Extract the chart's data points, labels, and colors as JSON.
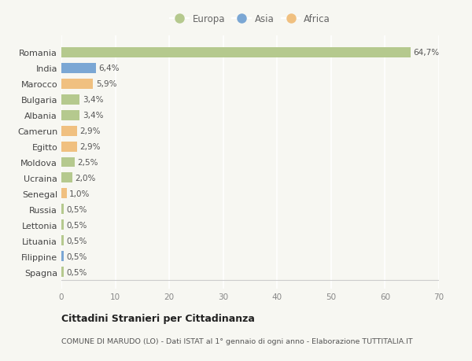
{
  "categories": [
    "Spagna",
    "Filippine",
    "Lituania",
    "Lettonia",
    "Russia",
    "Senegal",
    "Ucraina",
    "Moldova",
    "Egitto",
    "Camerun",
    "Albania",
    "Bulgaria",
    "Marocco",
    "India",
    "Romania"
  ],
  "values": [
    0.5,
    0.5,
    0.5,
    0.5,
    0.5,
    1.0,
    2.0,
    2.5,
    2.9,
    2.9,
    3.4,
    3.4,
    5.9,
    6.4,
    64.7
  ],
  "colors": [
    "#b5c98e",
    "#7ba7d4",
    "#b5c98e",
    "#b5c98e",
    "#b5c98e",
    "#f0c080",
    "#b5c98e",
    "#b5c98e",
    "#f0c080",
    "#f0c080",
    "#b5c98e",
    "#b5c98e",
    "#f0c080",
    "#7ba7d4",
    "#b5c98e"
  ],
  "labels": [
    "0,5%",
    "0,5%",
    "0,5%",
    "0,5%",
    "0,5%",
    "1,0%",
    "2,0%",
    "2,5%",
    "2,9%",
    "2,9%",
    "3,4%",
    "3,4%",
    "5,9%",
    "6,4%",
    "64,7%"
  ],
  "legend_labels": [
    "Europa",
    "Asia",
    "Africa"
  ],
  "legend_colors": [
    "#b5c98e",
    "#7ba7d4",
    "#f0c080"
  ],
  "title": "Cittadini Stranieri per Cittadinanza",
  "subtitle": "COMUNE DI MARUDO (LO) - Dati ISTAT al 1° gennaio di ogni anno - Elaborazione TUTTITALIA.IT",
  "xlim": [
    0,
    70
  ],
  "xticks": [
    0,
    10,
    20,
    30,
    40,
    50,
    60,
    70
  ],
  "background_color": "#f7f7f2",
  "grid_color": "#ffffff",
  "plot_bg_color": "#f7f7f2"
}
